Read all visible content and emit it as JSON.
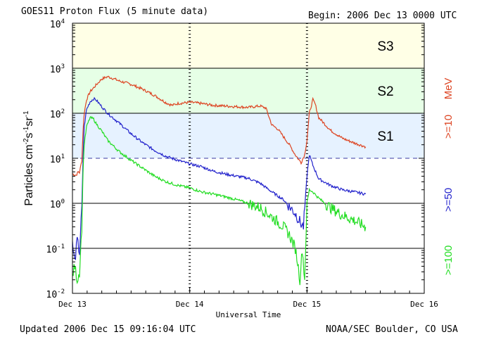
{
  "title": "GOES11 Proton Flux (5 minute data)",
  "begin": "Begin: 2006 Dec 13 0000 UTC",
  "updated": "Updated 2006 Dec 15 09:16:04 UTC",
  "credit": "NOAA/SEC Boulder, CO USA",
  "chart_data": {
    "type": "line",
    "title": "GOES11 Proton Flux (5 minute data)",
    "xlabel": "Universal Time",
    "ylabel": "Particles cm-2s-1sr-1",
    "y_scale": "log",
    "x_unit": "days since 2006 Dec 13 0000 UTC",
    "xlim": [
      0,
      3
    ],
    "ylim": [
      0.01,
      10000
    ],
    "x_ticks": [
      "Dec 13",
      "Dec 14",
      "Dec 15",
      "Dec 16"
    ],
    "y_ticks": [
      "10^-2",
      "10^-1",
      "10^0",
      "10^1",
      "10^2",
      "10^3",
      "10^4"
    ],
    "storm_levels": [
      {
        "label": "S3",
        "from": 1000,
        "to": 10000,
        "color": "#ffffe6"
      },
      {
        "label": "S2",
        "from": 100,
        "to": 1000,
        "color": "#e6ffe6"
      },
      {
        "label": "S1",
        "from": 10,
        "to": 100,
        "color": "#e6f2ff"
      }
    ],
    "threshold_line": 10,
    "reference_lines": [
      1,
      0.1
    ],
    "day_markers": [
      1,
      2
    ],
    "grid": false,
    "series": [
      {
        "name": ">=10 MeV",
        "label": ">=10",
        "unit": "MeV",
        "color": "#dd4422",
        "points": [
          [
            0,
            4.5
          ],
          [
            0.03,
            4.2
          ],
          [
            0.05,
            5.0
          ],
          [
            0.06,
            4.8
          ],
          [
            0.08,
            9
          ],
          [
            0.09,
            40
          ],
          [
            0.1,
            100
          ],
          [
            0.12,
            200
          ],
          [
            0.15,
            300
          ],
          [
            0.2,
            420
          ],
          [
            0.25,
            580
          ],
          [
            0.3,
            650
          ],
          [
            0.35,
            590
          ],
          [
            0.4,
            520
          ],
          [
            0.5,
            440
          ],
          [
            0.6,
            340
          ],
          [
            0.7,
            250
          ],
          [
            0.8,
            170
          ],
          [
            0.85,
            150
          ],
          [
            0.9,
            165
          ],
          [
            1.0,
            175
          ],
          [
            1.1,
            165
          ],
          [
            1.2,
            150
          ],
          [
            1.3,
            145
          ],
          [
            1.4,
            140
          ],
          [
            1.5,
            135
          ],
          [
            1.55,
            140
          ],
          [
            1.6,
            145
          ],
          [
            1.65,
            130
          ],
          [
            1.7,
            55
          ],
          [
            1.75,
            45
          ],
          [
            1.8,
            30
          ],
          [
            1.85,
            20
          ],
          [
            1.9,
            12
          ],
          [
            1.95,
            8
          ],
          [
            1.98,
            12
          ],
          [
            2.0,
            25
          ],
          [
            2.02,
            100
          ],
          [
            2.05,
            200
          ],
          [
            2.07,
            160
          ],
          [
            2.1,
            80
          ],
          [
            2.2,
            42
          ],
          [
            2.3,
            28
          ],
          [
            2.4,
            22
          ],
          [
            2.5,
            18
          ]
        ]
      },
      {
        "name": ">=50 MeV",
        "label": ">=50",
        "unit": "",
        "color": "#2222cc",
        "points": [
          [
            0,
            0.12
          ],
          [
            0.02,
            0.05
          ],
          [
            0.04,
            0.15
          ],
          [
            0.06,
            0.08
          ],
          [
            0.08,
            0.8
          ],
          [
            0.09,
            10
          ],
          [
            0.1,
            50
          ],
          [
            0.12,
            120
          ],
          [
            0.15,
            180
          ],
          [
            0.18,
            210
          ],
          [
            0.2,
            200
          ],
          [
            0.25,
            140
          ],
          [
            0.3,
            100
          ],
          [
            0.4,
            60
          ],
          [
            0.5,
            35
          ],
          [
            0.6,
            22
          ],
          [
            0.7,
            15
          ],
          [
            0.8,
            11
          ],
          [
            0.9,
            9
          ],
          [
            1.0,
            7.5
          ],
          [
            1.1,
            6.5
          ],
          [
            1.2,
            5.2
          ],
          [
            1.3,
            4.5
          ],
          [
            1.4,
            4
          ],
          [
            1.5,
            3.6
          ],
          [
            1.6,
            2.8
          ],
          [
            1.7,
            1.8
          ],
          [
            1.8,
            1.2
          ],
          [
            1.9,
            0.6
          ],
          [
            1.95,
            0.35
          ],
          [
            1.97,
            0.3
          ],
          [
            2.0,
            4
          ],
          [
            2.02,
            12
          ],
          [
            2.05,
            7
          ],
          [
            2.1,
            3.5
          ],
          [
            2.2,
            2.5
          ],
          [
            2.3,
            2.0
          ],
          [
            2.4,
            1.8
          ],
          [
            2.5,
            1.6
          ]
        ]
      },
      {
        "name": ">=100 MeV",
        "label": ">=100",
        "unit": "",
        "color": "#22dd22",
        "points": [
          [
            0,
            0.025
          ],
          [
            0.02,
            0.04
          ],
          [
            0.04,
            0.02
          ],
          [
            0.06,
            0.03
          ],
          [
            0.08,
            0.3
          ],
          [
            0.09,
            5
          ],
          [
            0.1,
            20
          ],
          [
            0.12,
            50
          ],
          [
            0.15,
            80
          ],
          [
            0.18,
            75
          ],
          [
            0.2,
            60
          ],
          [
            0.25,
            40
          ],
          [
            0.3,
            25
          ],
          [
            0.4,
            14
          ],
          [
            0.5,
            9
          ],
          [
            0.6,
            6
          ],
          [
            0.7,
            4
          ],
          [
            0.8,
            3
          ],
          [
            0.9,
            2.5
          ],
          [
            1.0,
            2.2
          ],
          [
            1.1,
            1.8
          ],
          [
            1.2,
            1.6
          ],
          [
            1.3,
            1.4
          ],
          [
            1.4,
            1.2
          ],
          [
            1.5,
            1.0
          ],
          [
            1.6,
            0.8
          ],
          [
            1.7,
            0.5
          ],
          [
            1.8,
            0.3
          ],
          [
            1.85,
            0.2
          ],
          [
            1.9,
            0.1
          ],
          [
            1.92,
            0.05
          ],
          [
            1.94,
            0.02
          ],
          [
            1.96,
            0.1
          ],
          [
            1.98,
            0.02
          ],
          [
            2.0,
            1
          ],
          [
            2.02,
            2
          ],
          [
            2.05,
            1.8
          ],
          [
            2.1,
            1.3
          ],
          [
            2.2,
            0.8
          ],
          [
            2.3,
            0.55
          ],
          [
            2.4,
            0.42
          ],
          [
            2.5,
            0.3
          ]
        ]
      }
    ]
  }
}
